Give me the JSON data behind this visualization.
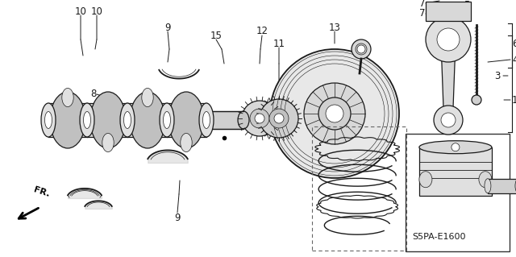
{
  "bg_color": "#ffffff",
  "fig_width": 6.4,
  "fig_height": 3.19,
  "dpi": 100,
  "diagram_code": "S5PA-E1600",
  "line_color": "#1a1a1a",
  "text_color": "#1a1a1a",
  "font_size": 7.5
}
